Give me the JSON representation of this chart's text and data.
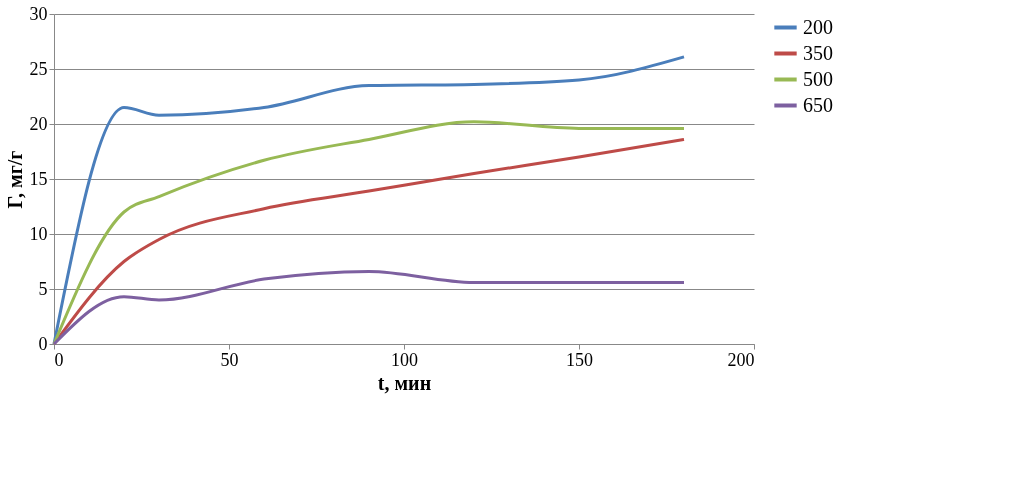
{
  "chart_data": {
    "type": "line",
    "xlabel": "t, мин",
    "ylabel": "Г, мг/г",
    "x": [
      0,
      20,
      30,
      60,
      90,
      120,
      150,
      180
    ],
    "series": [
      {
        "name": "200",
        "color": "#4a7ebb",
        "values": [
          0,
          21.5,
          20.8,
          21.5,
          23.5,
          23.6,
          24,
          26.1
        ]
      },
      {
        "name": "350",
        "color": "#be4b48",
        "values": [
          0,
          7.5,
          9.5,
          12.3,
          13.9,
          15.5,
          17,
          18.6
        ]
      },
      {
        "name": "500",
        "color": "#98b954",
        "values": [
          0,
          12,
          13.4,
          16.7,
          18.6,
          20.2,
          19.6,
          19.6
        ]
      },
      {
        "name": "650",
        "color": "#7d60a0",
        "values": [
          0,
          4.3,
          4.0,
          5.9,
          6.6,
          5.6,
          5.6,
          5.6
        ]
      }
    ],
    "xlim": [
      0,
      200
    ],
    "xticks": [
      0,
      50,
      100,
      150,
      200
    ],
    "ylim": [
      0,
      30
    ],
    "yticks": [
      0,
      5,
      10,
      15,
      20,
      25,
      30
    ],
    "grid": "y",
    "legend": "right",
    "marker": "none",
    "line_style": "solid"
  }
}
